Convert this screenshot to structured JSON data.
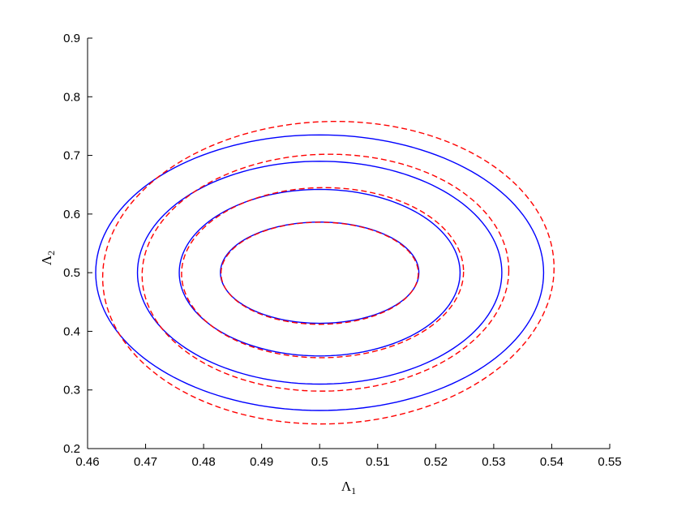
{
  "chart_data": {
    "type": "contour",
    "xlabel": "Λ",
    "xlabel_sub": "1",
    "ylabel": "Λ",
    "ylabel_sub": "2",
    "xlim": [
      0.46,
      0.55
    ],
    "ylim": [
      0.2,
      0.9
    ],
    "xticks": [
      "0.46",
      "0.47",
      "0.48",
      "0.49",
      "0.5",
      "0.51",
      "0.52",
      "0.53",
      "0.54",
      "0.55"
    ],
    "yticks": [
      "0.2",
      "0.3",
      "0.4",
      "0.5",
      "0.6",
      "0.7",
      "0.8",
      "0.9"
    ],
    "grid": false,
    "series": [
      {
        "style": "solid",
        "color": "#0000ff",
        "contours": [
          {
            "x_range": [
              0.4829,
              0.5171
            ],
            "y_range": [
              0.4137,
              0.5863
            ],
            "points": [
              [
                0.5171,
                0.4893
              ],
              [
                0.4995,
                0.5863
              ],
              [
                0.4829,
                0.5107
              ],
              [
                0.5005,
                0.4137
              ]
            ]
          },
          {
            "x_range": [
              0.4758,
              0.5242
            ],
            "y_range": [
              0.358,
              0.642
            ],
            "points": [
              [
                0.5242,
                0.4812
              ],
              [
                0.499,
                0.642
              ],
              [
                0.4758,
                0.5188
              ],
              [
                0.501,
                0.358
              ]
            ]
          },
          {
            "x_range": [
              0.4686,
              0.5314
            ],
            "y_range": [
              0.31,
              0.69
            ],
            "points": [
              [
                0.5314,
                0.4748
              ],
              [
                0.4986,
                0.69
              ],
              [
                0.4686,
                0.5252
              ],
              [
                0.5014,
                0.31
              ]
            ]
          },
          {
            "x_range": [
              0.4614,
              0.5386
            ],
            "y_range": [
              0.265,
              0.735
            ],
            "points": [
              [
                0.5386,
                0.47
              ],
              [
                0.4982,
                0.735
              ],
              [
                0.4614,
                0.53
              ],
              [
                0.5018,
                0.265
              ]
            ]
          }
        ]
      },
      {
        "style": "dashed",
        "color": "#ff0000",
        "contours": [
          {
            "x_range": [
              0.483,
              0.517
            ],
            "y_range": [
              0.412,
              0.586
            ],
            "points": [
              [
                0.517,
                0.487
              ],
              [
                0.4995,
                0.586
              ],
              [
                0.483,
                0.511
              ],
              [
                0.5005,
                0.412
              ]
            ]
          },
          {
            "x_range": [
              0.4762,
              0.5248
            ],
            "y_range": [
              0.355,
              0.645
            ],
            "points": [
              [
                0.5248,
                0.479
              ],
              [
                0.499,
                0.645
              ],
              [
                0.4762,
                0.52
              ],
              [
                0.501,
                0.355
              ]
            ]
          },
          {
            "x_range": [
              0.4694,
              0.5326
            ],
            "y_range": [
              0.298,
              0.702
            ],
            "points": [
              [
                0.5326,
                0.47
              ],
              [
                0.4985,
                0.702
              ],
              [
                0.4694,
                0.525
              ],
              [
                0.5015,
                0.298
              ]
            ]
          },
          {
            "x_range": [
              0.4626,
              0.5404
            ],
            "y_range": [
              0.242,
              0.758
            ],
            "points": [
              [
                0.5404,
                0.457
              ],
              [
                0.498,
                0.758
              ],
              [
                0.4626,
                0.53
              ],
              [
                0.502,
                0.242
              ]
            ]
          }
        ]
      }
    ]
  }
}
